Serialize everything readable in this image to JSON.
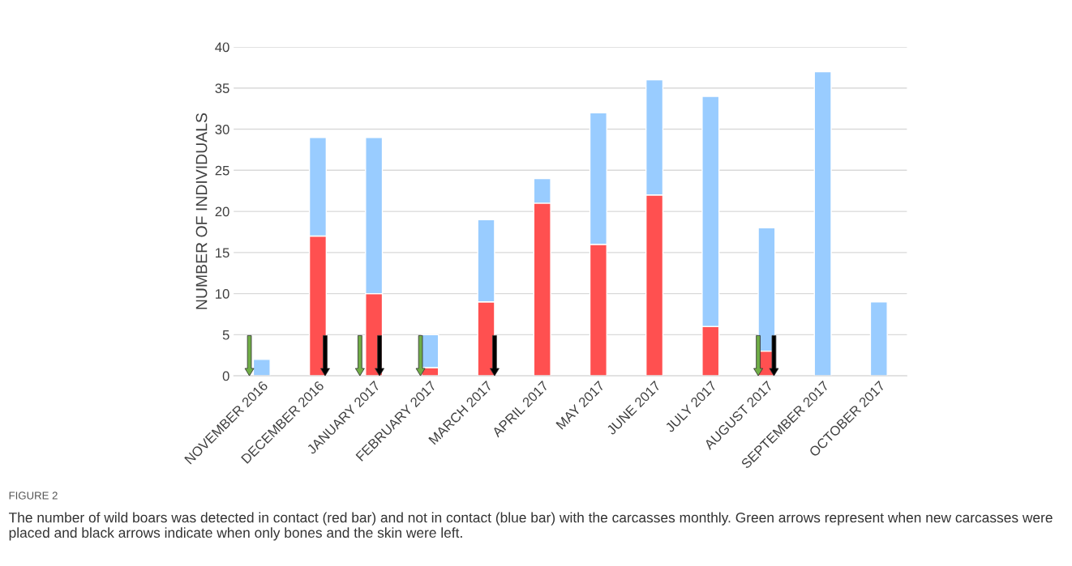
{
  "chart_data": {
    "type": "bar",
    "stacked": true,
    "ylabel": "NUMBER OF INDIVIDUALS",
    "categories": [
      "NOVEMBER 2016",
      "DECEMBER 2016",
      "JANUARY 2017",
      "FEBRUARY 2017",
      "MARCH 2017",
      "APRIL 2017",
      "MAY 2017",
      "JUNE 2017",
      "JULY 2017",
      "AUGUST 2017",
      "SEPTEMBER 2017",
      "OCTOBER 2017"
    ],
    "series": [
      {
        "color": "#ff5050",
        "values": [
          0,
          17,
          10,
          1,
          9,
          21,
          16,
          22,
          6,
          3,
          0,
          0
        ]
      },
      {
        "color": "#99ccff",
        "values": [
          2,
          12,
          19,
          4,
          10,
          3,
          16,
          14,
          28,
          15,
          37,
          9
        ]
      }
    ],
    "ylim": [
      0,
      40
    ],
    "yticks": [
      0,
      5,
      10,
      15,
      20,
      25,
      30,
      35,
      40
    ],
    "grid": "y",
    "legend": false,
    "annotations": [
      "FIGURE 2",
      "The number of wild boars was detected in contact (red bar) and not in contact (blue bar) with the carcasses monthly. Green arrows represent when new carcasses were placed and black arrows indicate when only bones and the skin were left."
    ]
  }
}
